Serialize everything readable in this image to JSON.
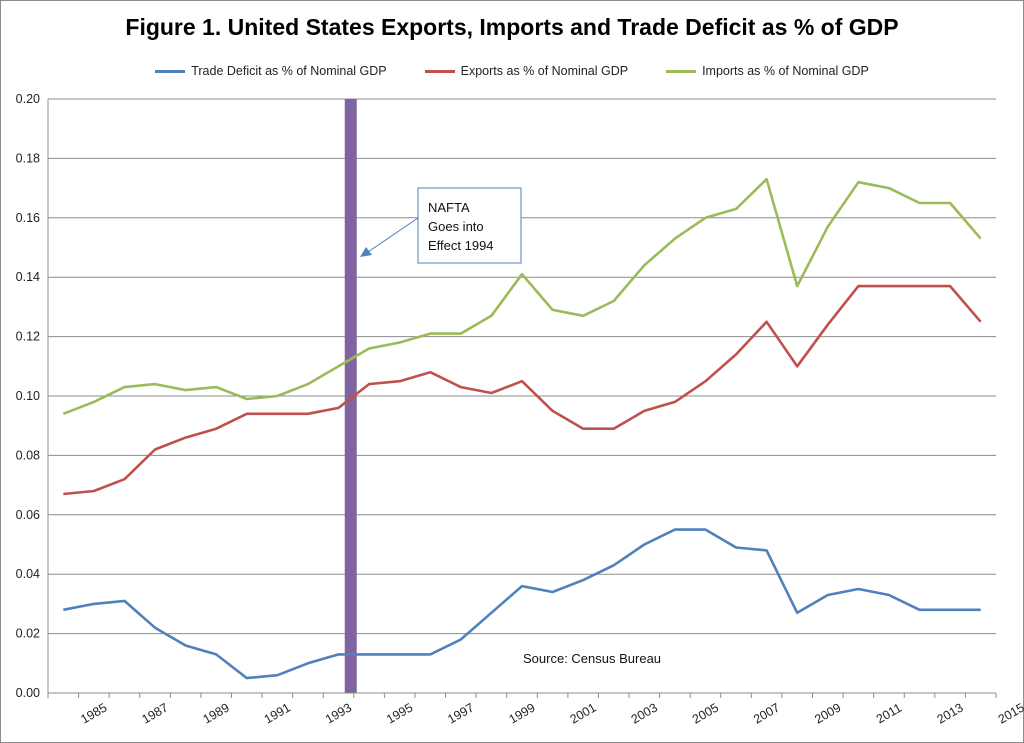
{
  "chart_data": {
    "type": "line",
    "title": "Figure 1. United States Exports, Imports and Trade Deficit as % of GDP",
    "xlabel": "",
    "ylabel": "",
    "ylim": [
      0,
      0.2
    ],
    "y_ticks": [
      "0.00",
      "0.02",
      "0.04",
      "0.06",
      "0.08",
      "0.10",
      "0.12",
      "0.14",
      "0.16",
      "0.18",
      "0.20"
    ],
    "x_tick_labels": [
      "1985",
      "1987",
      "1989",
      "1991",
      "1993",
      "1995",
      "1997",
      "1999",
      "2001",
      "2003",
      "2005",
      "2007",
      "2009",
      "2011",
      "2013",
      "2015"
    ],
    "x": [
      1984,
      1985,
      1986,
      1987,
      1988,
      1989,
      1990,
      1991,
      1992,
      1993,
      1994,
      1995,
      1996,
      1997,
      1998,
      1999,
      2000,
      2001,
      2002,
      2003,
      2004,
      2005,
      2006,
      2007,
      2008,
      2009,
      2010,
      2011,
      2012,
      2013,
      2014
    ],
    "grid": true,
    "legend_position": "top",
    "series": [
      {
        "name": "Trade Deficit as % of Nominal GDP",
        "color": "#4f81bd",
        "values": [
          0.028,
          0.03,
          0.031,
          0.022,
          0.016,
          0.013,
          0.005,
          0.006,
          0.01,
          0.013,
          0.013,
          0.013,
          0.013,
          0.018,
          0.027,
          0.036,
          0.034,
          0.038,
          0.043,
          0.05,
          0.055,
          0.055,
          0.049,
          0.048,
          0.027,
          0.033,
          0.035,
          0.033,
          0.028,
          0.028,
          0.028
        ]
      },
      {
        "name": "Exports as % of Nominal GDP",
        "color": "#c0504d",
        "values": [
          0.067,
          0.068,
          0.072,
          0.082,
          0.086,
          0.089,
          0.094,
          0.094,
          0.094,
          0.096,
          0.104,
          0.105,
          0.108,
          0.103,
          0.101,
          0.105,
          0.095,
          0.089,
          0.089,
          0.095,
          0.098,
          0.105,
          0.114,
          0.125,
          0.11,
          0.124,
          0.137,
          0.137,
          0.137,
          0.137,
          0.125
        ]
      },
      {
        "name": "Imports as % of Nominal GDP",
        "color": "#9bbb59",
        "values": [
          0.094,
          0.098,
          0.103,
          0.104,
          0.102,
          0.103,
          0.099,
          0.1,
          0.104,
          0.11,
          0.116,
          0.118,
          0.121,
          0.121,
          0.127,
          0.141,
          0.129,
          0.127,
          0.132,
          0.144,
          0.153,
          0.16,
          0.163,
          0.173,
          0.137,
          0.157,
          0.172,
          0.17,
          0.165,
          0.165,
          0.153
        ]
      }
    ],
    "marker_bar": {
      "year": 1993.4,
      "color": "#8064a2"
    },
    "annotation": {
      "lines": [
        "NAFTA",
        "Goes into",
        "Effect 1994"
      ]
    },
    "source_note": "Source: Census Bureau"
  }
}
